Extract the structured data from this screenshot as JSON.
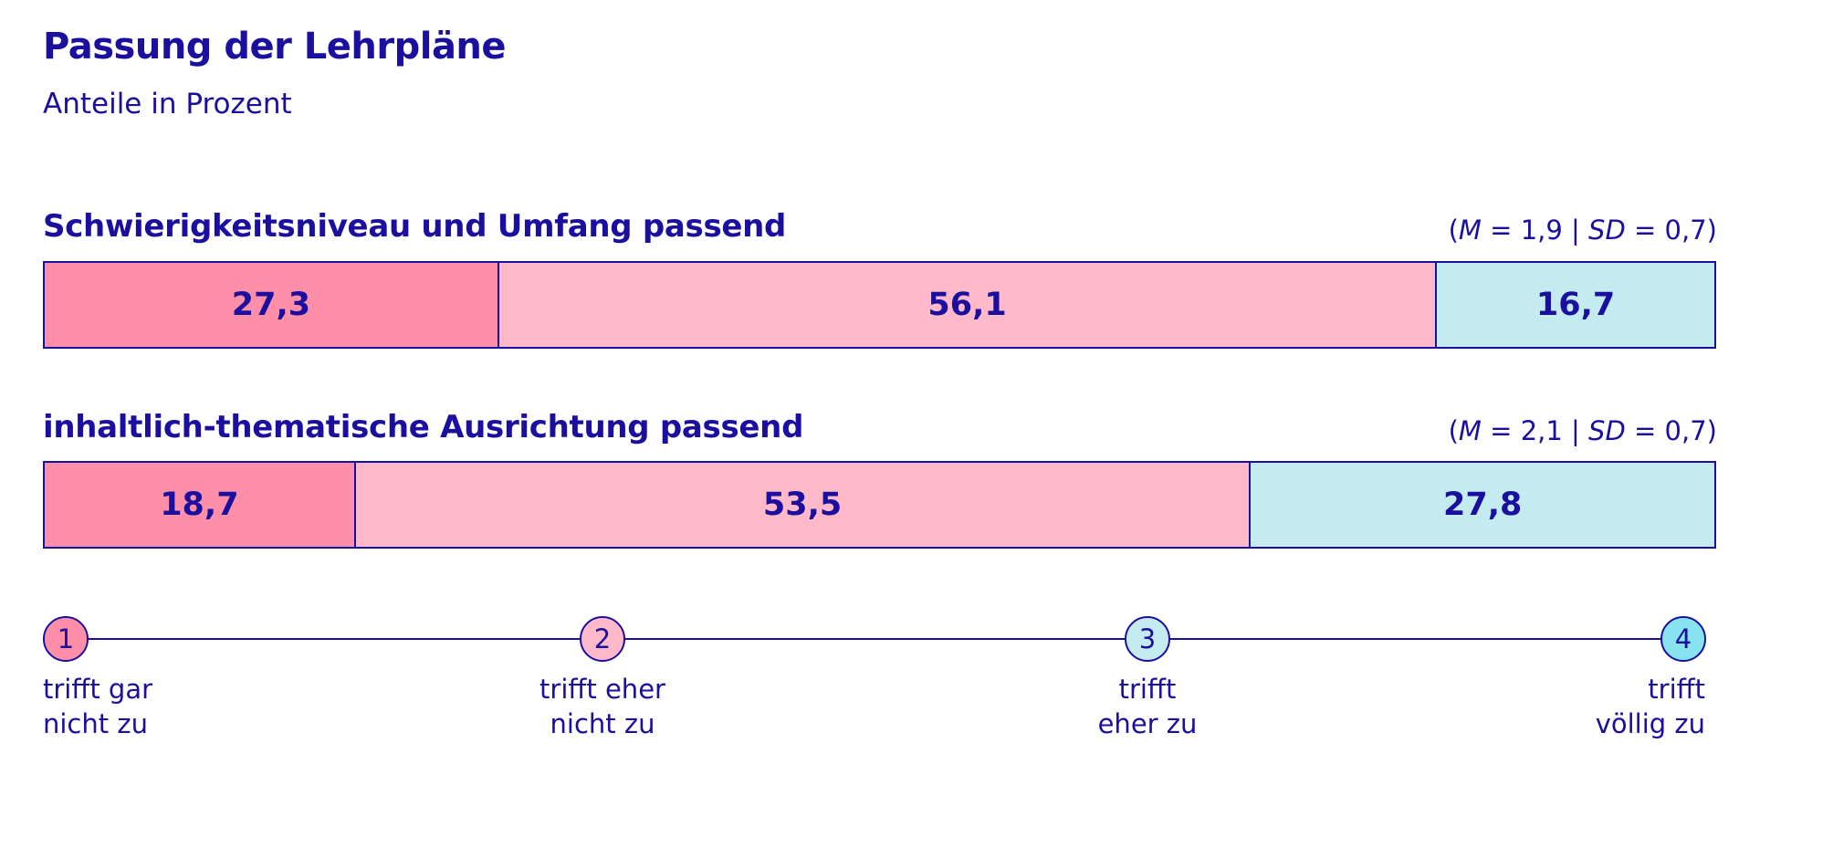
{
  "chart_data": {
    "type": "bar",
    "orientation": "horizontal-stacked",
    "title": "Passung der Lehrpläne",
    "subtitle": "Anteile in Prozent",
    "rows": [
      {
        "label": "Schwierigkeitsniveau und Umfang passend",
        "stats": {
          "m_label": "M",
          "m_value": "1,9",
          "sd_label": "SD",
          "sd_value": "0,7"
        },
        "values": [
          27.3,
          56.1,
          16.7
        ],
        "value_labels": [
          "27,3",
          "56,1",
          "16,7"
        ]
      },
      {
        "label": "inhaltlich-thematische Ausrichtung passend",
        "stats": {
          "m_label": "M",
          "m_value": "2,1",
          "sd_label": "SD",
          "sd_value": "0,7"
        },
        "values": [
          18.7,
          53.5,
          27.8
        ],
        "value_labels": [
          "18,7",
          "53,5",
          "27,8"
        ]
      }
    ],
    "segment_colors": [
      "#ff8fa8",
      "#ffb9c9",
      "#c4ecf0"
    ],
    "scale": [
      {
        "num": "1",
        "line1": "trifft gar",
        "line2": "nicht zu",
        "color": "#ff8fa8"
      },
      {
        "num": "2",
        "line1": "trifft eher",
        "line2": "nicht zu",
        "color": "#ffb9c9"
      },
      {
        "num": "3",
        "line1": "trifft",
        "line2": "eher zu",
        "color": "#c4ecf0"
      },
      {
        "num": "4",
        "line1": "trifft",
        "line2": "völlig zu",
        "color": "#86e3ef"
      }
    ],
    "accent_color": "#1a0f9e"
  }
}
